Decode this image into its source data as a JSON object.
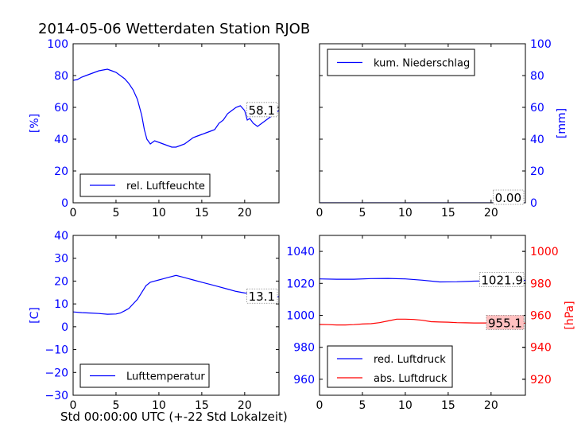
{
  "figure": {
    "title": "2014-05-06 Wetterdaten Station RJOB",
    "x_caption": "Std 00:00:00 UTC (+-22 Std Lokalzeit)"
  },
  "chart_data": [
    {
      "type": "line",
      "panel": "top-left",
      "ylabel": "[%]",
      "ylim": [
        0,
        100
      ],
      "yticks": [
        0,
        20,
        40,
        60,
        80,
        100
      ],
      "xlim": [
        0,
        24
      ],
      "xticks": [
        0,
        5,
        10,
        15,
        20
      ],
      "axis_color": "#0000ff",
      "legend": "bottom-left",
      "series": [
        {
          "name": "rel. Luftfeuchte",
          "color": "#0000ff",
          "x": [
            0,
            0.5,
            1,
            1.5,
            2,
            2.5,
            3,
            3.5,
            4,
            4.5,
            5,
            5.5,
            6,
            6.5,
            7,
            7.5,
            8,
            8.3,
            8.6,
            9,
            9.5,
            10,
            10.5,
            11,
            11.5,
            12,
            12.5,
            13,
            13.5,
            14,
            14.5,
            15,
            15.5,
            16,
            16.5,
            17,
            17.5,
            18,
            18.5,
            19,
            19.5,
            20,
            20.3,
            20.6,
            21,
            21.5,
            22,
            22.5,
            23,
            23.5,
            24
          ],
          "y": [
            77,
            77.5,
            79,
            80,
            81,
            82,
            83,
            83.5,
            84,
            83,
            82,
            80,
            78,
            75,
            71,
            65,
            55,
            46,
            40,
            37,
            39,
            38,
            37,
            36,
            35,
            35,
            36,
            37,
            39,
            41,
            42,
            43,
            44,
            45,
            46,
            50,
            52,
            56,
            58,
            60,
            61,
            58,
            52,
            53,
            50,
            48,
            50,
            52,
            54,
            56,
            58.1
          ]
        }
      ],
      "end_label": "58.1"
    },
    {
      "type": "line",
      "panel": "top-right",
      "ylabel": "[mm]",
      "ylim": [
        0,
        100
      ],
      "yticks": [
        0,
        20,
        40,
        60,
        80,
        100
      ],
      "xlim": [
        0,
        24
      ],
      "xticks": [
        0,
        5,
        10,
        15,
        20
      ],
      "axis_color": "#0000ff",
      "legend": "top-left",
      "series": [
        {
          "name": "kum. Niederschlag",
          "color": "#0000ff",
          "x": [
            0,
            24
          ],
          "y": [
            0,
            0
          ]
        }
      ],
      "end_label": "0.00"
    },
    {
      "type": "line",
      "panel": "bottom-left",
      "ylabel": "[C]",
      "ylim": [
        -30,
        40
      ],
      "yticks": [
        -30,
        -20,
        -10,
        0,
        10,
        20,
        30,
        40
      ],
      "ytick_labels": [
        "−30",
        "−20",
        "−10",
        "0",
        "10",
        "20",
        "30",
        "40"
      ],
      "xlim": [
        0,
        24
      ],
      "xticks": [
        0,
        5,
        10,
        15,
        20
      ],
      "axis_color": "#0000ff",
      "legend": "bottom-left",
      "series": [
        {
          "name": "Lufttemperatur",
          "color": "#0000ff",
          "x": [
            0,
            1,
            2,
            3,
            4,
            5,
            5.5,
            6,
            6.5,
            7,
            7.5,
            8,
            8.5,
            9,
            9.5,
            10,
            10.5,
            11,
            11.5,
            12,
            12.5,
            13,
            13.5,
            14,
            15,
            16,
            17,
            18,
            19,
            20,
            21,
            22,
            23,
            24
          ],
          "y": [
            6.5,
            6.2,
            6,
            5.8,
            5.5,
            5.6,
            6,
            7,
            8,
            10,
            12,
            15,
            18,
            19.5,
            20,
            20.5,
            21,
            21.5,
            22,
            22.5,
            22,
            21.5,
            21,
            20.5,
            19.5,
            18.5,
            17.5,
            16.5,
            15.5,
            14.8,
            14.5,
            14,
            13.5,
            13.1
          ]
        }
      ],
      "end_label": "13.1"
    },
    {
      "type": "line",
      "panel": "bottom-right",
      "ylim": [
        950,
        1050
      ],
      "yticks": [
        960,
        980,
        1000,
        1020,
        1040
      ],
      "y2label": "[hPa]",
      "y2lim": [
        910,
        1010
      ],
      "y2ticks": [
        920,
        940,
        960,
        980,
        1000
      ],
      "xlim": [
        0,
        24
      ],
      "xticks": [
        0,
        5,
        10,
        15,
        20
      ],
      "axis_color": "#0000ff",
      "axis2_color": "#ff0000",
      "legend": "bottom-left",
      "series": [
        {
          "name": "red. Luftdruck",
          "color": "#0000ff",
          "axis": "left",
          "x": [
            0,
            2,
            4,
            6,
            8,
            10,
            12,
            14,
            16,
            18,
            20,
            22,
            24
          ],
          "y": [
            1022.8,
            1022.6,
            1022.6,
            1023,
            1023.1,
            1022.8,
            1022,
            1020.9,
            1021,
            1021.4,
            1021.6,
            1021.7,
            1021.9
          ]
        },
        {
          "name": "abs. Luftdruck",
          "color": "#ff0000",
          "axis": "right",
          "x": [
            0,
            1,
            2,
            3,
            4,
            5,
            6,
            7,
            8,
            9,
            10,
            11,
            12,
            13,
            14,
            15,
            16,
            17,
            18,
            19,
            20,
            21,
            22,
            23,
            24
          ],
          "y": [
            954.3,
            954.2,
            954.0,
            954.0,
            954.2,
            954.6,
            954.8,
            955.4,
            956.5,
            957.6,
            957.6,
            957.4,
            956.9,
            956.0,
            955.8,
            955.7,
            955.4,
            955.3,
            955.2,
            955.2,
            955.2,
            955.1,
            955.1,
            955.1,
            955.1
          ]
        }
      ],
      "end_labels": [
        "1021.9",
        "955.1"
      ],
      "end_label_fills": [
        "#ffffff",
        "#ffc0c0"
      ]
    }
  ]
}
